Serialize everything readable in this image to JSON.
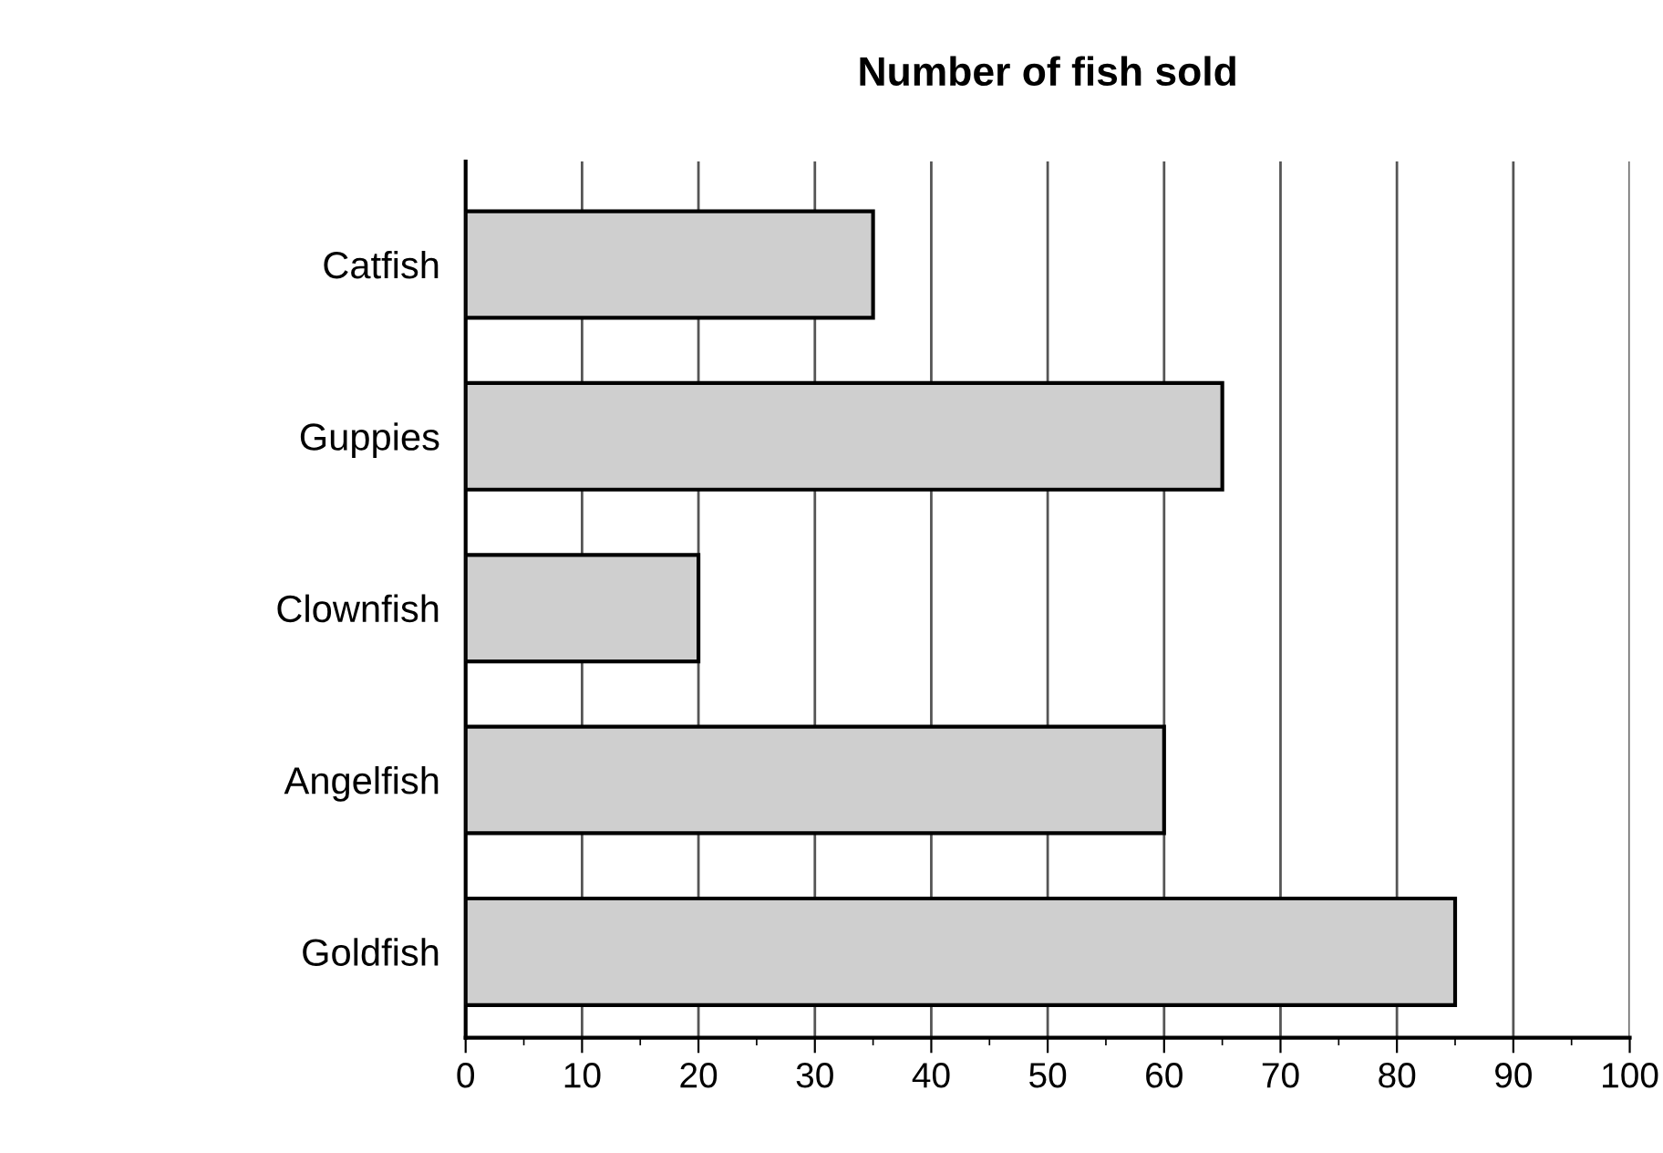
{
  "chart_data": {
    "type": "bar",
    "orientation": "horizontal",
    "title": "Number of fish sold",
    "categories": [
      "Catfish",
      "Guppies",
      "Clownfish",
      "Angelfish",
      "Goldfish"
    ],
    "values": [
      35,
      65,
      20,
      60,
      85
    ],
    "color": "#cfcfcf",
    "xlim": [
      0,
      100
    ],
    "xticks": [
      0,
      {
        "value": 5,
        "label": null
      },
      10,
      {
        "value": 15,
        "label": null
      },
      20,
      {
        "value": 25,
        "label": null
      },
      30,
      {
        "value": 35,
        "label": null
      },
      40,
      {
        "value": 45,
        "label": null
      },
      50,
      {
        "value": 55,
        "label": null
      },
      60,
      {
        "value": 65,
        "label": null
      },
      70,
      {
        "value": 75,
        "label": null
      },
      80,
      {
        "value": 85,
        "label": null
      },
      90,
      {
        "value": 95,
        "label": null
      },
      100
    ],
    "grid": "x"
  }
}
